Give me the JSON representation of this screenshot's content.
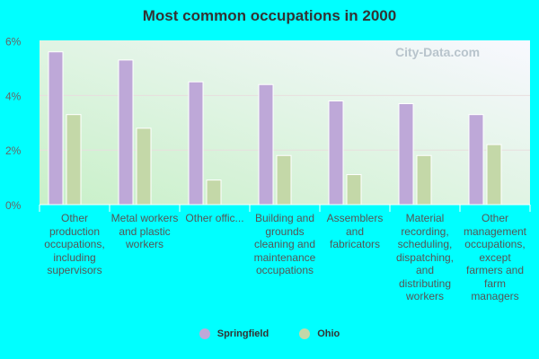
{
  "chart_data": {
    "type": "bar",
    "title": "Most common occupations in 2000",
    "categories": [
      "Other production occupations, including supervisors",
      "Metal workers and plastic workers",
      "Other offic...",
      "Building and grounds cleaning and maintenance occupations",
      "Assemblers and fabricators",
      "Material recording, scheduling, dispatching, and distributing workers",
      "Other management occupations, except farmers and farm managers"
    ],
    "series": [
      {
        "name": "Springfield",
        "color": "#bea8d8",
        "values": [
          5.6,
          5.3,
          4.5,
          4.4,
          3.8,
          3.7,
          3.3
        ]
      },
      {
        "name": "Ohio",
        "color": "#c4d8a8",
        "values": [
          3.3,
          2.8,
          0.9,
          1.8,
          1.1,
          1.8,
          2.2
        ]
      }
    ],
    "ylim": [
      0,
      6
    ],
    "yticks": [
      "0%",
      "2%",
      "4%",
      "6%"
    ],
    "grid": true,
    "legend": "bottom",
    "watermark": "City-Data.com"
  }
}
